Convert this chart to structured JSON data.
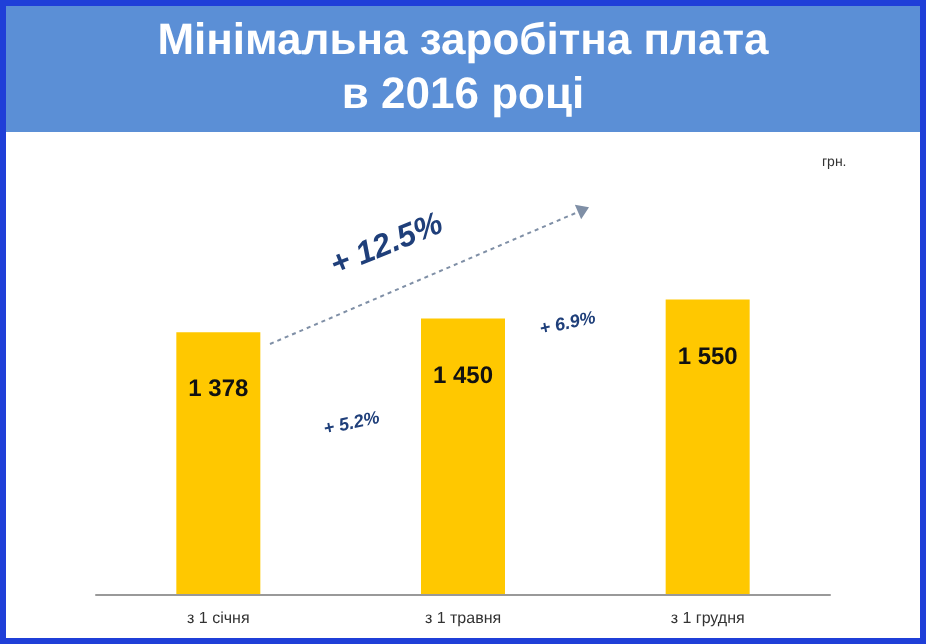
{
  "chart_data": {
    "type": "bar",
    "title": "Мінімальна заробітна плата\nв 2016 році",
    "categories": [
      "з 1 січня",
      "з 1 травня",
      "з 1 грудня"
    ],
    "values": [
      1378,
      1450,
      1550
    ],
    "color": "#ffc800",
    "value_labels": [
      "1 378",
      "1 450",
      "1 550"
    ],
    "annotations": [
      "+ 12.5%",
      "+ 5.2%",
      "+ 6.9%",
      "грн."
    ],
    "tick_labels": "x",
    "grid": false
  }
}
